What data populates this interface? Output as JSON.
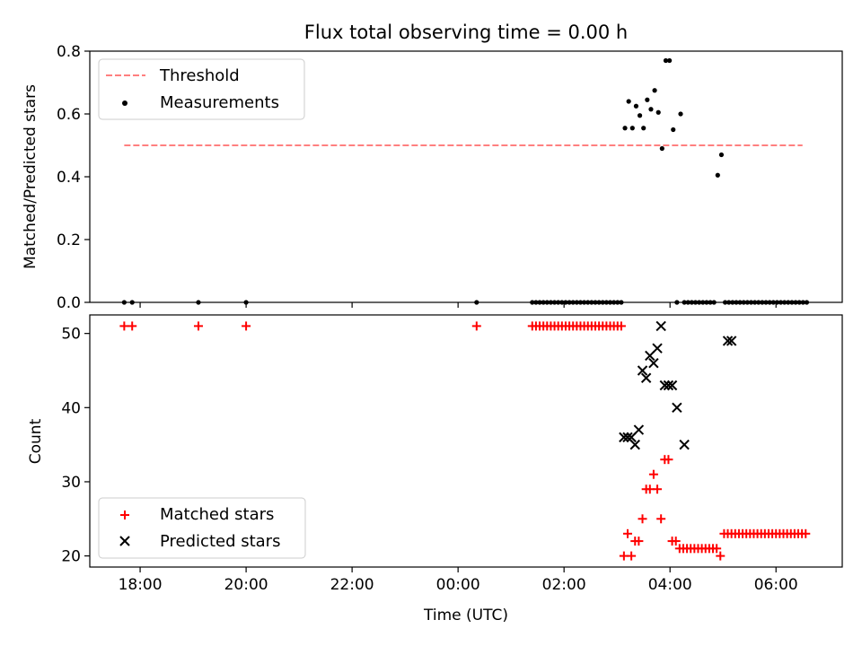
{
  "title": "Flux total observing time = 0.00 h",
  "colors": {
    "threshold": "#ff7f7f",
    "measurements": "#000000",
    "matched": "#ff0000",
    "predicted": "#000000"
  },
  "chart_data": [
    {
      "type": "scatter",
      "panel": "top",
      "ylabel": "Matched/Predicted stars",
      "xlim": [
        -6.95,
        7.25
      ],
      "ylim": [
        0,
        0.8
      ],
      "yticks": [
        0.0,
        0.2,
        0.4,
        0.6,
        0.8
      ],
      "ytick_labels": [
        "0.0",
        "0.2",
        "0.4",
        "0.6",
        "0.8"
      ],
      "legend_position": "top-left",
      "series": [
        {
          "name": "Threshold",
          "style": "dashed-line",
          "x": [
            -6.3,
            6.5
          ],
          "y": [
            0.5,
            0.5
          ]
        },
        {
          "name": "Measurements",
          "style": "dot",
          "x": [
            -6.3,
            -6.15,
            -4.9,
            -4.0,
            0.35,
            1.4,
            1.47,
            1.54,
            1.61,
            1.68,
            1.75,
            1.82,
            1.89,
            1.96,
            2.03,
            2.1,
            2.17,
            2.24,
            2.31,
            2.38,
            2.45,
            2.52,
            2.59,
            2.66,
            2.73,
            2.8,
            2.87,
            2.94,
            3.01,
            3.08,
            3.15,
            3.22,
            3.29,
            3.36,
            3.43,
            3.5,
            3.57,
            3.64,
            3.71,
            3.78,
            3.85,
            3.92,
            3.99,
            4.06,
            4.13,
            4.2,
            4.27,
            4.34,
            4.41,
            4.48,
            4.55,
            4.62,
            4.69,
            4.76,
            4.83,
            4.9,
            4.97,
            5.04,
            5.11,
            5.18,
            5.25,
            5.32,
            5.39,
            5.46,
            5.53,
            5.6,
            5.67,
            5.74,
            5.81,
            5.88,
            5.95,
            6.02,
            6.09,
            6.16,
            6.23,
            6.3,
            6.37,
            6.44,
            6.51,
            6.58
          ],
          "y": [
            0,
            0,
            0,
            0,
            0,
            0,
            0,
            0,
            0,
            0,
            0,
            0,
            0,
            0,
            0,
            0,
            0,
            0,
            0,
            0,
            0,
            0,
            0,
            0,
            0,
            0,
            0,
            0,
            0,
            0,
            0.555,
            0.64,
            0.555,
            0.625,
            0.595,
            0.555,
            0.645,
            0.615,
            0.675,
            0.605,
            0.49,
            0.77,
            0.77,
            0.55,
            0,
            0.6,
            0,
            0,
            0,
            0,
            0,
            0,
            0,
            0,
            0,
            0.405,
            0.47,
            0,
            0,
            0,
            0,
            0,
            0,
            0,
            0,
            0,
            0,
            0,
            0,
            0,
            0,
            0,
            0,
            0,
            0,
            0,
            0,
            0,
            0,
            0
          ],
          "x_overlay": [
            3.15,
            3.22,
            3.29,
            3.36,
            3.43,
            3.5,
            3.57,
            3.64,
            3.71,
            3.78,
            3.85,
            3.92,
            3.99,
            4.13,
            4.27,
            5.11,
            5.18
          ],
          "y_overlay": [
            0.555,
            0.64,
            0.555,
            0.625,
            0.595,
            0.555,
            0.645,
            0.615,
            0.675,
            0.605,
            0.49,
            0.77,
            0.77,
            0.55,
            0.6,
            0.405,
            0.47
          ]
        }
      ]
    },
    {
      "type": "scatter",
      "panel": "bottom",
      "xlabel": "Time (UTC)",
      "ylabel": "Count",
      "xlim": [
        -6.95,
        7.25
      ],
      "ylim": [
        18.5,
        52.5
      ],
      "xticks": [
        -6,
        -4,
        -2,
        0,
        2,
        4,
        6
      ],
      "xtick_labels": [
        "18:00",
        "20:00",
        "22:00",
        "00:00",
        "02:00",
        "04:00",
        "06:00"
      ],
      "yticks": [
        20,
        30,
        40,
        50
      ],
      "ytick_labels": [
        "20",
        "30",
        "40",
        "50"
      ],
      "legend_position": "bottom-left",
      "series": [
        {
          "name": "Matched stars",
          "style": "plus",
          "x": [
            -6.3,
            -6.15,
            -4.9,
            -4.0,
            0.35,
            1.4,
            1.47,
            1.54,
            1.61,
            1.68,
            1.75,
            1.82,
            1.89,
            1.96,
            2.03,
            2.1,
            2.17,
            2.24,
            2.31,
            2.38,
            2.45,
            2.52,
            2.59,
            2.66,
            2.73,
            2.8,
            2.87,
            2.94,
            3.01,
            3.08,
            3.13,
            3.2,
            3.27,
            3.34,
            3.41,
            3.48,
            3.55,
            3.62,
            3.69,
            3.76,
            3.83,
            3.9,
            3.97,
            4.04,
            4.11,
            4.18,
            4.25,
            4.32,
            4.39,
            4.46,
            4.53,
            4.6,
            4.67,
            4.74,
            4.81,
            4.88,
            4.95,
            5.02,
            5.09,
            5.16,
            5.23,
            5.3,
            5.37,
            5.44,
            5.51,
            5.58,
            5.65,
            5.72,
            5.79,
            5.86,
            5.93,
            6.0,
            6.07,
            6.14,
            6.21,
            6.28,
            6.35,
            6.42,
            6.49,
            6.56
          ],
          "y": [
            51,
            51,
            51,
            51,
            51,
            51,
            51,
            51,
            51,
            51,
            51,
            51,
            51,
            51,
            51,
            51,
            51,
            51,
            51,
            51,
            51,
            51,
            51,
            51,
            51,
            51,
            51,
            51,
            51,
            51,
            20,
            23,
            20,
            22,
            22,
            25,
            29,
            29,
            31,
            29,
            25,
            33,
            33,
            22,
            22,
            21,
            21,
            21,
            21,
            21,
            21,
            21,
            21,
            21,
            21,
            21,
            20,
            23,
            23,
            23,
            23,
            23,
            23,
            23,
            23,
            23,
            23,
            23,
            23,
            23,
            23,
            23,
            23,
            23,
            23,
            23,
            23,
            23,
            23,
            23
          ]
        },
        {
          "name": "Predicted stars",
          "style": "x",
          "x": [
            3.13,
            3.2,
            3.27,
            3.34,
            3.41,
            3.48,
            3.55,
            3.62,
            3.69,
            3.76,
            3.83,
            3.9,
            3.97,
            4.04,
            4.13,
            4.27,
            5.09,
            5.16
          ],
          "y": [
            36,
            36,
            36,
            35,
            37,
            45,
            44,
            47,
            46,
            48,
            51,
            43,
            43,
            43,
            40,
            35,
            49,
            49
          ]
        }
      ]
    }
  ]
}
